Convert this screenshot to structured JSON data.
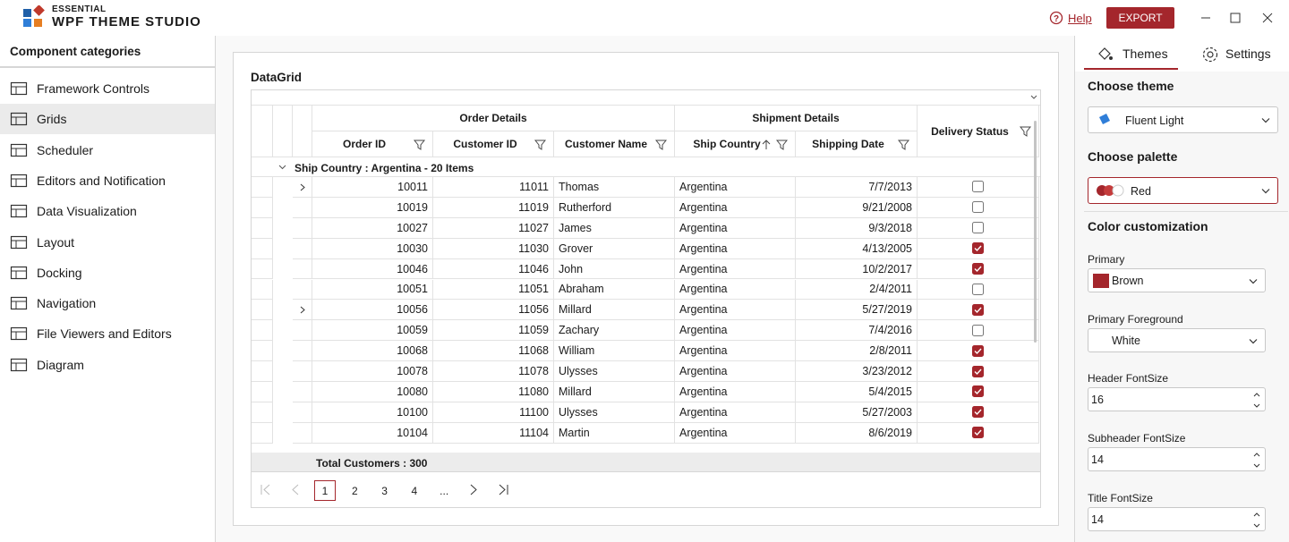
{
  "titlebar": {
    "brand_top": "ESSENTIAL",
    "brand": "WPF THEME STUDIO",
    "help": "Help",
    "export": "EXPORT"
  },
  "sidebar": {
    "title": "Component categories",
    "selected": 1,
    "items": [
      "Framework Controls",
      "Grids",
      "Scheduler",
      "Editors and Notification",
      "Data Visualization",
      "Layout",
      "Docking",
      "Navigation",
      "File Viewers and Editors",
      "Diagram"
    ]
  },
  "main": {
    "panel_title": "DataGrid",
    "grid": {
      "group_headers": [
        "Order Details",
        "Shipment Details"
      ],
      "columns": [
        "Order ID",
        "Customer ID",
        "Customer Name",
        "Ship Country",
        "Shipping Date",
        "Delivery Status"
      ],
      "group_row": "Ship Country : Argentina - 20 Items",
      "rows": [
        {
          "order_id": "10011",
          "customer_id": "11011",
          "customer_name": "Thomas",
          "ship_country": "Argentina",
          "shipping_date": "7/7/2013",
          "delivered": false,
          "expandable": true
        },
        {
          "order_id": "10019",
          "customer_id": "11019",
          "customer_name": "Rutherford",
          "ship_country": "Argentina",
          "shipping_date": "9/21/2008",
          "delivered": false,
          "expandable": false
        },
        {
          "order_id": "10027",
          "customer_id": "11027",
          "customer_name": "James",
          "ship_country": "Argentina",
          "shipping_date": "9/3/2018",
          "delivered": false,
          "expandable": false
        },
        {
          "order_id": "10030",
          "customer_id": "11030",
          "customer_name": "Grover",
          "ship_country": "Argentina",
          "shipping_date": "4/13/2005",
          "delivered": true,
          "expandable": false
        },
        {
          "order_id": "10046",
          "customer_id": "11046",
          "customer_name": "John",
          "ship_country": "Argentina",
          "shipping_date": "10/2/2017",
          "delivered": true,
          "expandable": false
        },
        {
          "order_id": "10051",
          "customer_id": "11051",
          "customer_name": "Abraham",
          "ship_country": "Argentina",
          "shipping_date": "2/4/2011",
          "delivered": false,
          "expandable": false
        },
        {
          "order_id": "10056",
          "customer_id": "11056",
          "customer_name": "Millard",
          "ship_country": "Argentina",
          "shipping_date": "5/27/2019",
          "delivered": true,
          "expandable": true
        },
        {
          "order_id": "10059",
          "customer_id": "11059",
          "customer_name": "Zachary",
          "ship_country": "Argentina",
          "shipping_date": "7/4/2016",
          "delivered": false,
          "expandable": false
        },
        {
          "order_id": "10068",
          "customer_id": "11068",
          "customer_name": "William",
          "ship_country": "Argentina",
          "shipping_date": "2/8/2011",
          "delivered": true,
          "expandable": false
        },
        {
          "order_id": "10078",
          "customer_id": "11078",
          "customer_name": "Ulysses",
          "ship_country": "Argentina",
          "shipping_date": "3/23/2012",
          "delivered": true,
          "expandable": false
        },
        {
          "order_id": "10080",
          "customer_id": "11080",
          "customer_name": "Millard",
          "ship_country": "Argentina",
          "shipping_date": "5/4/2015",
          "delivered": true,
          "expandable": false
        },
        {
          "order_id": "10100",
          "customer_id": "11100",
          "customer_name": "Ulysses",
          "ship_country": "Argentina",
          "shipping_date": "5/27/2003",
          "delivered": true,
          "expandable": false
        },
        {
          "order_id": "10104",
          "customer_id": "11104",
          "customer_name": "Martin",
          "ship_country": "Argentina",
          "shipping_date": "8/6/2019",
          "delivered": true,
          "expandable": false
        }
      ],
      "summary": "Total Customers : 300"
    },
    "pager": {
      "pages": [
        "1",
        "2",
        "3",
        "4",
        "..."
      ],
      "current": 0
    }
  },
  "right_panel": {
    "tabs": [
      "Themes",
      "Settings"
    ],
    "active_tab": 0,
    "choose_theme": "Choose theme",
    "theme": "Fluent Light",
    "choose_palette": "Choose palette",
    "palette": "Red",
    "color_customization": "Color customization",
    "fields": [
      {
        "label": "Primary",
        "value": "Brown",
        "kind": "dropdown",
        "swatch": "#a4262c"
      },
      {
        "label": "Primary Foreground",
        "value": "White",
        "kind": "dropdown"
      },
      {
        "label": "Header FontSize",
        "value": "16",
        "kind": "spinner"
      },
      {
        "label": "Subheader FontSize",
        "value": "14",
        "kind": "spinner"
      },
      {
        "label": "Title FontSize",
        "value": "14",
        "kind": "spinner"
      }
    ]
  }
}
